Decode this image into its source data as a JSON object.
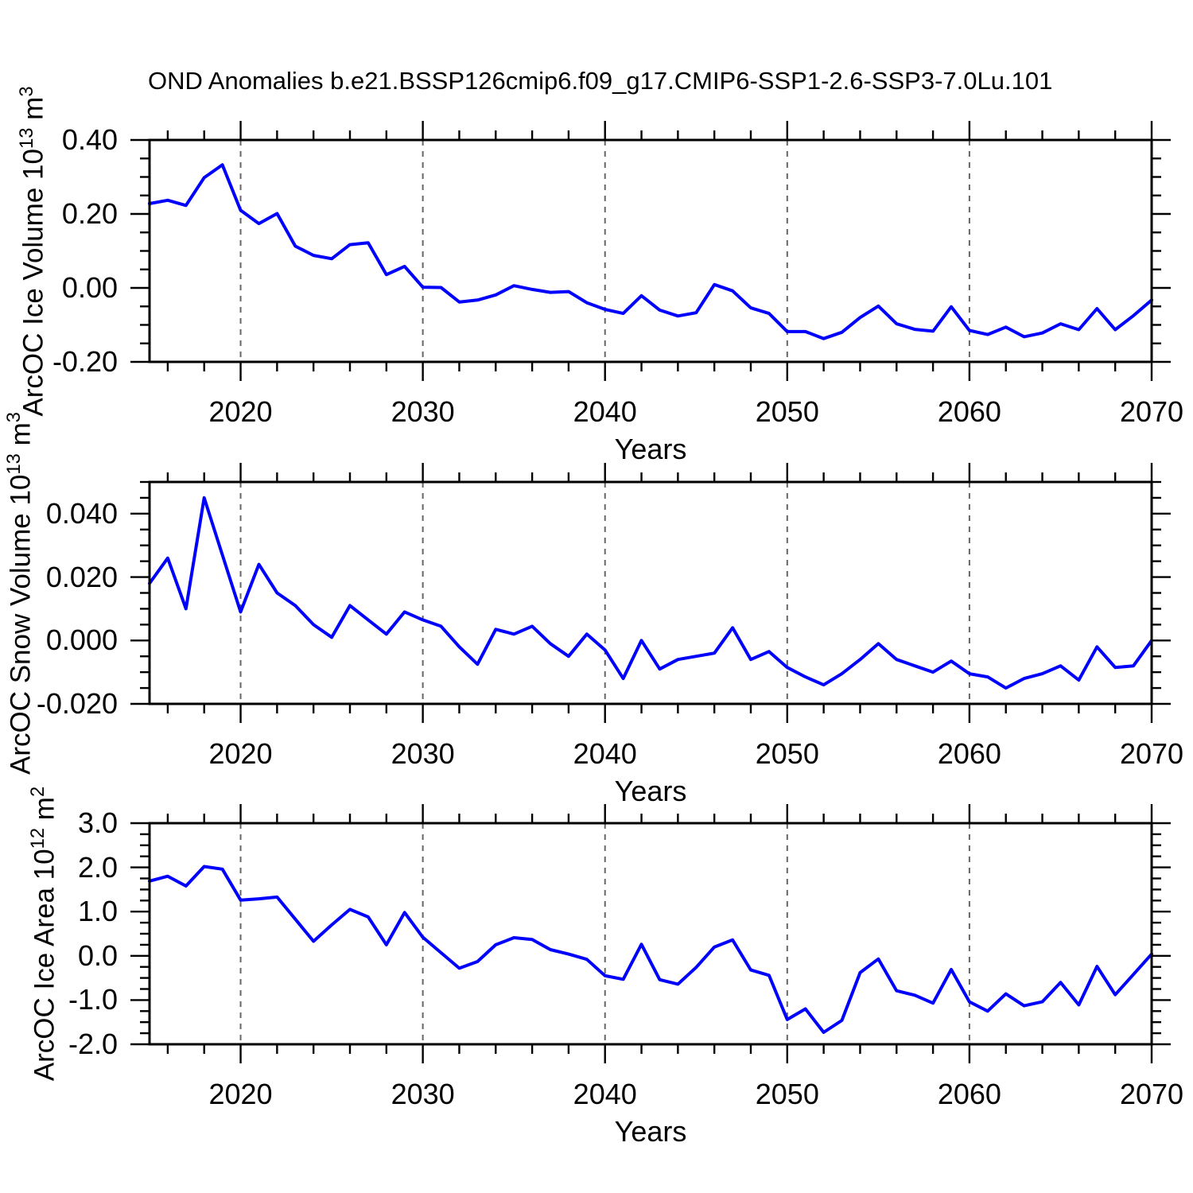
{
  "title": "OND Anomalies b.e21.BSSP126cmip6.f09_g17.CMIP6-SSP1-2.6-SSP3-7.0Lu.101",
  "colors": {
    "line": "#0000ff",
    "grid": "#666666",
    "frame": "#000000",
    "text": "#000000"
  },
  "x_axis": {
    "label": "Years",
    "min": 2015,
    "max": 2070,
    "major_ticks": [
      {
        "value": 2020,
        "label": "2020"
      },
      {
        "value": 2030,
        "label": "2030"
      },
      {
        "value": 2040,
        "label": "2040"
      },
      {
        "value": 2050,
        "label": "2050"
      },
      {
        "value": 2060,
        "label": "2060"
      },
      {
        "value": 2070,
        "label": "2070"
      }
    ],
    "minor_step": 2,
    "dashed_gridlines": [
      2020,
      2030,
      2040,
      2050,
      2060
    ]
  },
  "years": [
    2015,
    2016,
    2017,
    2018,
    2019,
    2020,
    2021,
    2022,
    2023,
    2024,
    2025,
    2026,
    2027,
    2028,
    2029,
    2030,
    2031,
    2032,
    2033,
    2034,
    2035,
    2036,
    2037,
    2038,
    2039,
    2040,
    2041,
    2042,
    2043,
    2044,
    2045,
    2046,
    2047,
    2048,
    2049,
    2050,
    2051,
    2052,
    2053,
    2054,
    2055,
    2056,
    2057,
    2058,
    2059,
    2060,
    2061,
    2062,
    2063,
    2064,
    2065,
    2066,
    2067,
    2068,
    2069,
    2070
  ],
  "chart_data": [
    {
      "type": "line",
      "id": "arcoc-ice-volume",
      "ylabel": {
        "base": "ArcOC Ice Volume 10",
        "exp": "13",
        "unit": " m",
        "unit_exp": "3"
      },
      "ylim": [
        -0.2,
        0.4
      ],
      "yticks": [
        {
          "value": 0.4,
          "label": "0.40"
        },
        {
          "value": 0.2,
          "label": "0.20"
        },
        {
          "value": 0.0,
          "label": "0.00"
        },
        {
          "value": -0.2,
          "label": "-0.20"
        }
      ],
      "yminor_step": 0.05,
      "values": [
        0.228,
        0.237,
        0.223,
        0.298,
        0.333,
        0.21,
        0.174,
        0.201,
        0.113,
        0.088,
        0.079,
        0.117,
        0.122,
        0.036,
        0.058,
        0.002,
        0.001,
        -0.038,
        -0.033,
        -0.019,
        0.006,
        -0.004,
        -0.012,
        -0.01,
        -0.04,
        -0.058,
        -0.069,
        -0.021,
        -0.06,
        -0.076,
        -0.067,
        0.009,
        -0.008,
        -0.054,
        -0.069,
        -0.118,
        -0.118,
        -0.137,
        -0.12,
        -0.08,
        -0.049,
        -0.097,
        -0.112,
        -0.117,
        -0.051,
        -0.115,
        -0.126,
        -0.106,
        -0.132,
        -0.122,
        -0.097,
        -0.113,
        -0.056,
        -0.113,
        -0.075,
        -0.033
      ]
    },
    {
      "type": "line",
      "id": "arcoc-snow-volume",
      "ylabel": {
        "base": "ArcOC Snow Volume 10",
        "exp": "13",
        "unit": " m",
        "unit_exp": "3"
      },
      "ylim": [
        -0.02,
        0.05
      ],
      "yticks": [
        {
          "value": 0.04,
          "label": "0.040"
        },
        {
          "value": 0.02,
          "label": "0.020"
        },
        {
          "value": 0.0,
          "label": "0.000"
        },
        {
          "value": -0.02,
          "label": "-0.020"
        }
      ],
      "yminor_step": 0.005,
      "values": [
        0.018,
        0.026,
        0.01,
        0.045,
        0.027,
        0.009,
        0.024,
        0.015,
        0.011,
        0.005,
        0.001,
        0.011,
        0.0065,
        0.002,
        0.009,
        0.0065,
        0.0045,
        -0.002,
        -0.0075,
        0.0035,
        0.002,
        0.0045,
        -0.001,
        -0.005,
        0.002,
        -0.003,
        -0.012,
        0.0,
        -0.009,
        -0.006,
        -0.005,
        -0.004,
        0.004,
        -0.006,
        -0.0035,
        -0.0085,
        -0.0115,
        -0.014,
        -0.0105,
        -0.006,
        -0.001,
        -0.006,
        -0.008,
        -0.01,
        -0.0065,
        -0.0105,
        -0.0115,
        -0.015,
        -0.012,
        -0.0105,
        -0.008,
        -0.0125,
        -0.002,
        -0.0085,
        -0.008,
        0.0
      ]
    },
    {
      "type": "line",
      "id": "arcoc-ice-area",
      "ylabel": {
        "base": "ArcOC Ice Area 10",
        "exp": "12",
        "unit": " m",
        "unit_exp": "2"
      },
      "ylim": [
        -2.0,
        3.0
      ],
      "yticks": [
        {
          "value": 3.0,
          "label": "3.0"
        },
        {
          "value": 2.0,
          "label": "2.0"
        },
        {
          "value": 1.0,
          "label": "1.0"
        },
        {
          "value": 0.0,
          "label": "0.0"
        },
        {
          "value": -1.0,
          "label": "-1.0"
        },
        {
          "value": -2.0,
          "label": "-2.0"
        }
      ],
      "yminor_step": 0.25,
      "values": [
        1.69,
        1.8,
        1.58,
        2.02,
        1.96,
        1.26,
        1.29,
        1.33,
        0.83,
        0.33,
        0.7,
        1.05,
        0.88,
        0.25,
        0.98,
        0.42,
        0.07,
        -0.28,
        -0.13,
        0.25,
        0.41,
        0.37,
        0.14,
        0.04,
        -0.08,
        -0.45,
        -0.53,
        0.26,
        -0.54,
        -0.64,
        -0.26,
        0.2,
        0.36,
        -0.32,
        -0.44,
        -1.44,
        -1.2,
        -1.73,
        -1.46,
        -0.38,
        -0.07,
        -0.79,
        -0.89,
        -1.07,
        -0.31,
        -1.04,
        -1.25,
        -0.86,
        -1.13,
        -1.04,
        -0.6,
        -1.11,
        -0.24,
        -0.88,
        -0.42,
        0.04
      ]
    }
  ]
}
